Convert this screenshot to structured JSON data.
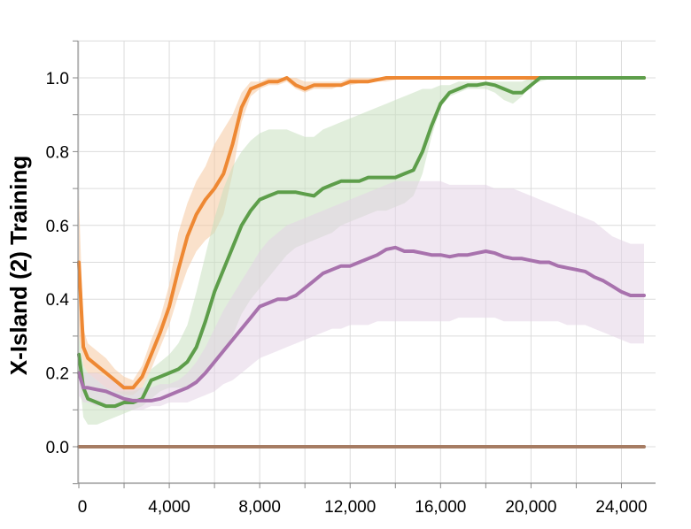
{
  "chart_data": {
    "type": "line",
    "title": "",
    "xlabel": "",
    "ylabel": "X-Island (2) Training",
    "xlim": [
      0,
      25000
    ],
    "ylim": [
      -0.1,
      1.1
    ],
    "grid": true,
    "legend": "none",
    "x_ticks": [
      {
        "value": 0,
        "label": "0"
      },
      {
        "value": 4000,
        "label": "4,000"
      },
      {
        "value": 8000,
        "label": "8,000"
      },
      {
        "value": 12000,
        "label": "12,000"
      },
      {
        "value": 16000,
        "label": "16,000"
      },
      {
        "value": 20000,
        "label": "20,000"
      },
      {
        "value": 24000,
        "label": "24,000"
      }
    ],
    "y_ticks": [
      {
        "value": 0.0,
        "label": "0.0"
      },
      {
        "value": 0.2,
        "label": "0.2"
      },
      {
        "value": 0.4,
        "label": "0.4"
      },
      {
        "value": 0.6,
        "label": "0.6"
      },
      {
        "value": 0.8,
        "label": "0.8"
      },
      {
        "value": 1.0,
        "label": "1.0"
      }
    ],
    "series": [
      {
        "color": "#ee8833",
        "band_color": "#f5c9a0",
        "x": [
          0,
          200,
          400,
          800,
          1200,
          1600,
          2000,
          2400,
          2800,
          3200,
          3600,
          4000,
          4400,
          4800,
          5200,
          5600,
          6000,
          6400,
          6800,
          7200,
          7600,
          8000,
          8400,
          8800,
          9200,
          9600,
          10000,
          10400,
          10800,
          11200,
          11600,
          12000,
          12800,
          13600,
          14400,
          15200,
          16000,
          18000,
          20000,
          22000,
          24000,
          25000
        ],
        "y": [
          0.5,
          0.27,
          0.24,
          0.22,
          0.2,
          0.18,
          0.16,
          0.16,
          0.19,
          0.25,
          0.31,
          0.38,
          0.48,
          0.57,
          0.63,
          0.67,
          0.7,
          0.74,
          0.82,
          0.92,
          0.97,
          0.98,
          0.99,
          0.99,
          1.0,
          0.98,
          0.97,
          0.98,
          0.98,
          0.98,
          0.98,
          0.99,
          0.99,
          1.0,
          1.0,
          1.0,
          1.0,
          1.0,
          1.0,
          1.0,
          1.0,
          1.0
        ],
        "lower": [
          0.3,
          0.22,
          0.2,
          0.18,
          0.16,
          0.15,
          0.14,
          0.14,
          0.16,
          0.21,
          0.27,
          0.33,
          0.41,
          0.48,
          0.53,
          0.56,
          0.58,
          0.63,
          0.74,
          0.88,
          0.95,
          0.97,
          0.98,
          0.98,
          0.99,
          0.97,
          0.96,
          0.97,
          0.97,
          0.97,
          0.98,
          0.98,
          0.99,
          0.99,
          1.0,
          1.0,
          1.0,
          1.0,
          1.0,
          1.0,
          1.0,
          1.0
        ],
        "upper": [
          0.68,
          0.32,
          0.28,
          0.26,
          0.24,
          0.21,
          0.19,
          0.18,
          0.22,
          0.29,
          0.35,
          0.44,
          0.58,
          0.66,
          0.72,
          0.76,
          0.82,
          0.86,
          0.9,
          0.96,
          0.99,
          0.99,
          1.0,
          1.0,
          1.0,
          1.0,
          0.99,
          0.99,
          0.99,
          0.99,
          0.99,
          1.0,
          1.0,
          1.0,
          1.0,
          1.0,
          1.0,
          1.0,
          1.0,
          1.0,
          1.0,
          1.0
        ]
      },
      {
        "color": "#5d9e4a",
        "band_color": "#c8e0bf",
        "x": [
          0,
          200,
          400,
          800,
          1200,
          1600,
          2000,
          2400,
          2800,
          3200,
          3600,
          4000,
          4400,
          4800,
          5200,
          5600,
          6000,
          6400,
          6800,
          7200,
          7600,
          8000,
          8400,
          8800,
          9200,
          9600,
          10000,
          10400,
          10800,
          11200,
          11600,
          12000,
          12400,
          12800,
          13200,
          13600,
          14000,
          14400,
          14800,
          15200,
          15600,
          16000,
          16400,
          16800,
          17200,
          17600,
          18000,
          18400,
          18800,
          19200,
          19600,
          20000,
          20400,
          21000,
          22000,
          23000,
          24000,
          25000
        ],
        "y": [
          0.25,
          0.16,
          0.13,
          0.12,
          0.11,
          0.11,
          0.12,
          0.12,
          0.13,
          0.18,
          0.19,
          0.2,
          0.21,
          0.23,
          0.27,
          0.34,
          0.42,
          0.48,
          0.54,
          0.6,
          0.64,
          0.67,
          0.68,
          0.69,
          0.69,
          0.69,
          0.685,
          0.68,
          0.7,
          0.71,
          0.72,
          0.72,
          0.72,
          0.73,
          0.73,
          0.73,
          0.73,
          0.74,
          0.75,
          0.8,
          0.87,
          0.93,
          0.96,
          0.97,
          0.98,
          0.98,
          0.985,
          0.98,
          0.97,
          0.96,
          0.96,
          0.98,
          1.0,
          1.0,
          1.0,
          1.0,
          1.0,
          1.0
        ],
        "lower": [
          0.2,
          0.08,
          0.06,
          0.06,
          0.07,
          0.08,
          0.09,
          0.1,
          0.11,
          0.13,
          0.15,
          0.16,
          0.16,
          0.16,
          0.18,
          0.2,
          0.22,
          0.26,
          0.3,
          0.36,
          0.4,
          0.43,
          0.46,
          0.49,
          0.52,
          0.54,
          0.55,
          0.56,
          0.57,
          0.58,
          0.6,
          0.61,
          0.62,
          0.63,
          0.64,
          0.64,
          0.65,
          0.66,
          0.68,
          0.74,
          0.84,
          0.92,
          0.95,
          0.96,
          0.97,
          0.97,
          0.97,
          0.96,
          0.94,
          0.93,
          0.95,
          0.98,
          0.99,
          1.0,
          1.0,
          1.0,
          1.0,
          1.0
        ],
        "upper": [
          0.3,
          0.22,
          0.2,
          0.18,
          0.16,
          0.15,
          0.15,
          0.15,
          0.16,
          0.21,
          0.23,
          0.25,
          0.28,
          0.33,
          0.42,
          0.52,
          0.62,
          0.7,
          0.76,
          0.8,
          0.83,
          0.85,
          0.86,
          0.86,
          0.86,
          0.85,
          0.84,
          0.84,
          0.86,
          0.87,
          0.88,
          0.89,
          0.9,
          0.91,
          0.92,
          0.93,
          0.94,
          0.95,
          0.96,
          0.97,
          0.97,
          0.98,
          0.98,
          0.99,
          0.99,
          0.99,
          0.99,
          0.99,
          0.99,
          0.99,
          0.99,
          1.0,
          1.0,
          1.0,
          1.0,
          1.0,
          1.0,
          1.0
        ]
      },
      {
        "color": "#a872ad",
        "band_color": "#e3d3e5",
        "x": [
          0,
          200,
          400,
          800,
          1200,
          1600,
          2000,
          2400,
          2800,
          3200,
          3600,
          4000,
          4400,
          4800,
          5200,
          5600,
          6000,
          6400,
          6800,
          7200,
          7600,
          8000,
          8400,
          8800,
          9200,
          9600,
          10000,
          10400,
          10800,
          11200,
          11600,
          12000,
          12400,
          12800,
          13200,
          13600,
          14000,
          14400,
          14800,
          15200,
          15600,
          16000,
          16400,
          16800,
          17200,
          17600,
          18000,
          18400,
          18800,
          19200,
          19600,
          20000,
          20400,
          20800,
          21200,
          21600,
          22000,
          22400,
          22800,
          23200,
          23600,
          24000,
          24400,
          24800,
          25000
        ],
        "y": [
          0.2,
          0.16,
          0.16,
          0.155,
          0.15,
          0.14,
          0.13,
          0.125,
          0.125,
          0.125,
          0.13,
          0.14,
          0.15,
          0.16,
          0.175,
          0.2,
          0.23,
          0.26,
          0.29,
          0.32,
          0.35,
          0.38,
          0.39,
          0.4,
          0.4,
          0.41,
          0.43,
          0.45,
          0.47,
          0.48,
          0.49,
          0.49,
          0.5,
          0.51,
          0.52,
          0.535,
          0.54,
          0.53,
          0.53,
          0.525,
          0.52,
          0.52,
          0.515,
          0.52,
          0.52,
          0.525,
          0.53,
          0.525,
          0.515,
          0.51,
          0.51,
          0.505,
          0.5,
          0.5,
          0.49,
          0.485,
          0.48,
          0.475,
          0.46,
          0.45,
          0.435,
          0.42,
          0.41,
          0.41,
          0.41
        ],
        "lower": [
          0.14,
          0.12,
          0.12,
          0.11,
          0.11,
          0.1,
          0.1,
          0.1,
          0.1,
          0.11,
          0.11,
          0.12,
          0.12,
          0.12,
          0.13,
          0.14,
          0.15,
          0.17,
          0.18,
          0.2,
          0.22,
          0.24,
          0.25,
          0.26,
          0.27,
          0.28,
          0.29,
          0.3,
          0.31,
          0.32,
          0.32,
          0.33,
          0.33,
          0.33,
          0.34,
          0.34,
          0.34,
          0.34,
          0.34,
          0.34,
          0.34,
          0.34,
          0.34,
          0.35,
          0.35,
          0.35,
          0.35,
          0.35,
          0.34,
          0.34,
          0.34,
          0.34,
          0.34,
          0.34,
          0.34,
          0.33,
          0.33,
          0.33,
          0.32,
          0.31,
          0.3,
          0.29,
          0.28,
          0.28,
          0.28
        ],
        "upper": [
          0.26,
          0.2,
          0.2,
          0.2,
          0.19,
          0.18,
          0.17,
          0.16,
          0.16,
          0.16,
          0.17,
          0.17,
          0.18,
          0.2,
          0.23,
          0.27,
          0.32,
          0.37,
          0.41,
          0.45,
          0.49,
          0.53,
          0.56,
          0.58,
          0.6,
          0.61,
          0.62,
          0.63,
          0.64,
          0.65,
          0.66,
          0.67,
          0.68,
          0.69,
          0.7,
          0.71,
          0.72,
          0.72,
          0.72,
          0.72,
          0.72,
          0.72,
          0.71,
          0.71,
          0.71,
          0.71,
          0.71,
          0.7,
          0.7,
          0.7,
          0.69,
          0.68,
          0.67,
          0.66,
          0.65,
          0.64,
          0.63,
          0.62,
          0.61,
          0.59,
          0.57,
          0.56,
          0.55,
          0.55,
          0.55
        ]
      },
      {
        "color": "#a67c63",
        "band_color": "#a67c63",
        "x": [
          0,
          25000
        ],
        "y": [
          0.0,
          0.0
        ],
        "lower": [
          0.0,
          0.0
        ],
        "upper": [
          0.0,
          0.0
        ]
      }
    ]
  }
}
